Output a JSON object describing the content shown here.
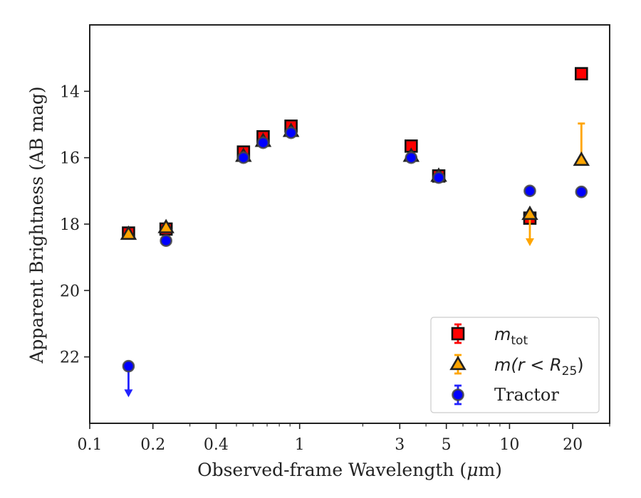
{
  "chart_data": {
    "type": "scatter",
    "xlabel_main": "Observed-frame Wavelength (",
    "xlabel_mu": "μ",
    "xlabel_end": "m)",
    "ylabel": "Apparent Brightness (AB mag)",
    "x_scale": "log",
    "xlim": [
      0.1,
      30
    ],
    "ylim": [
      24.0,
      12.0
    ],
    "y_inverted": true,
    "x_ticks": [
      0.1,
      0.2,
      0.4,
      1,
      3,
      5,
      10,
      20
    ],
    "x_tick_labels": [
      "0.1",
      "0.2",
      "0.4",
      "1",
      "3",
      "5",
      "10",
      "20"
    ],
    "y_ticks": [
      14,
      16,
      18,
      20,
      22
    ],
    "y_tick_labels": [
      "14",
      "16",
      "18",
      "20",
      "22"
    ],
    "grid": false,
    "legend_position": "lower-right",
    "legend_labels": {
      "mtot_main": "m",
      "mtot_sub": "tot",
      "mr_pre": "m(r < R",
      "mr_sub": "25",
      "mr_post": ")",
      "tractor": "Tractor"
    },
    "series": [
      {
        "key": "mtot",
        "marker": "square",
        "color": "#ff0000",
        "error_color": "#ff0000",
        "points": [
          {
            "x": 0.153,
            "y": 18.27,
            "err": 0.05
          },
          {
            "x": 0.231,
            "y": 18.15,
            "err": 0.05
          },
          {
            "x": 0.54,
            "y": 15.83,
            "err": 0.05
          },
          {
            "x": 0.67,
            "y": 15.37,
            "err": 0.05
          },
          {
            "x": 0.91,
            "y": 15.05,
            "err": 0.1
          },
          {
            "x": 3.4,
            "y": 15.65,
            "err": 0.05
          },
          {
            "x": 4.6,
            "y": 16.55,
            "err": 0.05
          },
          {
            "x": 12.5,
            "y": 17.82,
            "err": 0.05
          },
          {
            "x": 22.0,
            "y": 13.47,
            "err": 0.05
          }
        ]
      },
      {
        "key": "mr25",
        "marker": "triangle",
        "color": "#ffa500",
        "error_color": "#ffa500",
        "points": [
          {
            "x": 0.153,
            "y": 18.3
          },
          {
            "x": 0.231,
            "y": 18.1
          },
          {
            "x": 0.54,
            "y": 15.95
          },
          {
            "x": 0.67,
            "y": 15.5
          },
          {
            "x": 0.91,
            "y": 15.2
          },
          {
            "x": 3.4,
            "y": 15.95
          },
          {
            "x": 4.6,
            "y": 16.55
          },
          {
            "x": 12.5,
            "y": 17.7,
            "upper_limit": true,
            "arrow_to": 18.6
          },
          {
            "x": 22.0,
            "y": 16.07,
            "err_low": 1.1,
            "err_high": 0
          }
        ]
      },
      {
        "key": "tractor",
        "marker": "circle",
        "color": "#0000ff",
        "error_color": "#2222ff",
        "points": [
          {
            "x": 0.153,
            "y": 22.28,
            "upper_limit": true,
            "arrow_to": 23.15
          },
          {
            "x": 0.231,
            "y": 18.5
          },
          {
            "x": 0.54,
            "y": 16.0
          },
          {
            "x": 0.67,
            "y": 15.55
          },
          {
            "x": 0.91,
            "y": 15.25
          },
          {
            "x": 3.4,
            "y": 16.0
          },
          {
            "x": 4.6,
            "y": 16.6
          },
          {
            "x": 12.5,
            "y": 17.0
          },
          {
            "x": 22.0,
            "y": 17.03
          }
        ]
      }
    ]
  }
}
